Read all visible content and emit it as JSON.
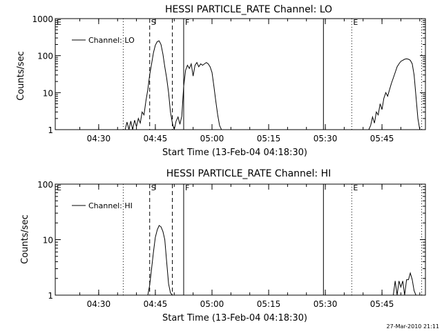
{
  "footer": {
    "date_stamp": "27-Mar-2010 21:11"
  },
  "chart_data": [
    {
      "type": "line",
      "title": "HESSI PARTICLE_RATE Channel: LO",
      "xlabel": "Start Time (13-Feb-04 04:18:30)",
      "ylabel": "Counts/sec",
      "y_scale": "log",
      "ylim": [
        1,
        1000
      ],
      "y_ticks": [
        "1",
        "10",
        "100",
        "1000"
      ],
      "x_ticks": [
        "04:30",
        "04:45",
        "05:00",
        "05:15",
        "05:30",
        "05:45"
      ],
      "xlim_minutes_from_start": [
        0,
        98
      ],
      "legend": {
        "entries": [
          "Channel: LO"
        ],
        "position": "top-left"
      },
      "markers": [
        {
          "label": "E",
          "time": "04:18:30",
          "style": "dotted"
        },
        {
          "label": "",
          "time": "04:36:30",
          "style": "dotted"
        },
        {
          "label": "S",
          "time": "04:43:30",
          "style": "dashed"
        },
        {
          "label": "",
          "time": "04:49:30",
          "style": "dashed"
        },
        {
          "label": "F",
          "time": "04:52:30",
          "style": "solid"
        },
        {
          "label": "",
          "time": "05:29:30",
          "style": "solid"
        },
        {
          "label": "E",
          "time": "05:37:00",
          "style": "dotted"
        },
        {
          "label": "",
          "time": "05:55:30",
          "style": "dotted"
        }
      ],
      "series": [
        {
          "name": "Channel: LO",
          "segments": [
            {
              "x": [
                "04:37:00",
                "04:37:30",
                "04:38:00",
                "04:38:30",
                "04:39:00",
                "04:39:30",
                "04:40:00",
                "04:40:30",
                "04:41:00",
                "04:41:30",
                "04:42:00",
                "04:42:30",
                "04:43:00",
                "04:43:30",
                "04:44:00",
                "04:44:30",
                "04:45:00",
                "04:45:30",
                "04:46:00",
                "04:46:30",
                "04:47:00",
                "04:47:30",
                "04:48:00",
                "04:48:30",
                "04:49:00",
                "04:49:30",
                "04:50:00",
                "04:50:30",
                "04:51:00",
                "04:51:30",
                "04:52:00",
                "04:52:30"
              ],
              "y": [
                1,
                1.6,
                1,
                1.7,
                1,
                1.8,
                1.2,
                2,
                1.5,
                3,
                2.5,
                6,
                12,
                30,
                60,
                120,
                190,
                240,
                250,
                200,
                110,
                50,
                25,
                10,
                3,
                1.5,
                1,
                1.7,
                2.2,
                1.4,
                2.3,
                15
              ]
            },
            {
              "x": [
                "04:52:30",
                "04:53:00",
                "04:53:30",
                "04:54:00",
                "04:54:30",
                "04:55:00",
                "04:55:30",
                "04:56:00",
                "04:56:30",
                "04:57:00",
                "04:57:30",
                "04:58:00",
                "04:58:30",
                "04:59:00",
                "04:59:30",
                "05:00:00",
                "05:00:30",
                "05:01:00",
                "05:01:30",
                "05:02:00",
                "05:02:30",
                "05:03:00"
              ],
              "y": [
                15,
                40,
                55,
                45,
                60,
                28,
                55,
                65,
                50,
                60,
                55,
                60,
                65,
                60,
                50,
                35,
                15,
                6,
                2.5,
                1.3,
                1,
                1
              ]
            },
            {
              "x": [
                "05:41:30",
                "05:42:00",
                "05:42:30",
                "05:43:00",
                "05:43:30",
                "05:44:00",
                "05:44:30",
                "05:45:00",
                "05:45:30",
                "05:46:00",
                "05:46:30",
                "05:47:00",
                "05:47:30",
                "05:48:00",
                "05:48:30",
                "05:49:00",
                "05:49:30",
                "05:50:00",
                "05:50:30",
                "05:51:00",
                "05:51:30",
                "05:52:00",
                "05:52:30",
                "05:53:00",
                "05:53:30",
                "05:54:00",
                "05:54:30",
                "05:55:00"
              ],
              "y": [
                1,
                1.3,
                2.2,
                1.5,
                3,
                2.5,
                5,
                3.5,
                7,
                10,
                8,
                12,
                18,
                25,
                35,
                50,
                60,
                70,
                75,
                80,
                82,
                80,
                75,
                60,
                30,
                8,
                2,
                1
              ]
            }
          ]
        }
      ]
    },
    {
      "type": "line",
      "title": "HESSI PARTICLE_RATE Channel: HI",
      "xlabel": "Start Time (13-Feb-04 04:18:30)",
      "ylabel": "Counts/sec",
      "y_scale": "log",
      "ylim": [
        1,
        100
      ],
      "y_ticks": [
        "1",
        "10",
        "100"
      ],
      "x_ticks": [
        "04:30",
        "04:45",
        "05:00",
        "05:15",
        "05:30",
        "05:45"
      ],
      "xlim_minutes_from_start": [
        0,
        98
      ],
      "legend": {
        "entries": [
          "Channel: HI"
        ],
        "position": "top-left"
      },
      "markers": [
        {
          "label": "E",
          "time": "04:18:30",
          "style": "dotted"
        },
        {
          "label": "",
          "time": "04:36:30",
          "style": "dotted"
        },
        {
          "label": "S",
          "time": "04:43:30",
          "style": "dashed"
        },
        {
          "label": "",
          "time": "04:49:30",
          "style": "dashed"
        },
        {
          "label": "F",
          "time": "04:52:30",
          "style": "solid"
        },
        {
          "label": "",
          "time": "05:29:30",
          "style": "solid"
        },
        {
          "label": "E",
          "time": "05:37:00",
          "style": "dotted"
        },
        {
          "label": "",
          "time": "05:55:30",
          "style": "dotted"
        }
      ],
      "series": [
        {
          "name": "Channel: HI",
          "segments": [
            {
              "x": [
                "04:43:00",
                "04:43:30",
                "04:44:00",
                "04:44:30",
                "04:45:00",
                "04:45:30",
                "04:46:00",
                "04:46:30",
                "04:47:00",
                "04:47:30",
                "04:48:00",
                "04:48:30",
                "04:49:00",
                "04:49:30"
              ],
              "y": [
                1,
                1.5,
                3,
                6,
                11,
                15,
                18,
                17,
                14,
                10,
                4,
                1.6,
                1.1,
                1
              ]
            },
            {
              "x": [
                "05:48:00",
                "05:48:30",
                "05:49:00",
                "05:49:30",
                "05:50:00",
                "05:50:30",
                "05:51:00",
                "05:51:30",
                "05:52:00",
                "05:52:30",
                "05:53:00",
                "05:53:30",
                "05:54:00"
              ],
              "y": [
                1,
                1.8,
                1,
                1.8,
                1.4,
                1.8,
                1,
                1.9,
                1.9,
                2.5,
                1.9,
                1.2,
                1
              ]
            }
          ]
        }
      ]
    }
  ]
}
